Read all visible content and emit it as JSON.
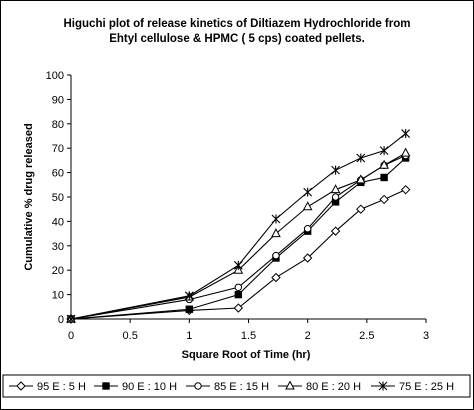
{
  "chart_data": {
    "type": "line",
    "title_lines": [
      "Higuchi plot of release kinetics of Diltiazem Hydrochloride from",
      "Ehtyl cellulose & HPMC ( 5 cps) coated pellets."
    ],
    "xlabel": "Square Root of Time (hr)",
    "ylabel": "Cumulative % drug released",
    "xlim": [
      0,
      3
    ],
    "ylim": [
      0,
      100
    ],
    "x_ticks": [
      "0",
      "0.5",
      "1",
      "1.5",
      "2",
      "2.5",
      "3"
    ],
    "y_ticks": [
      "0",
      "10",
      "20",
      "30",
      "40",
      "50",
      "60",
      "70",
      "80",
      "90",
      "100"
    ],
    "grid": false,
    "legend_position": "bottom",
    "x": [
      0,
      1,
      1.414,
      1.732,
      2,
      2.236,
      2.449,
      2.646,
      2.828
    ],
    "series": [
      {
        "name": "95 E : 5 H",
        "marker": "diamond",
        "values": [
          0,
          3.5,
          4.5,
          17,
          25,
          36,
          45,
          49,
          53
        ]
      },
      {
        "name": "90 E : 10 H",
        "marker": "square",
        "values": [
          0,
          4,
          10,
          25,
          36,
          48,
          56,
          58,
          66
        ]
      },
      {
        "name": "85 E : 15 H",
        "marker": "circle",
        "values": [
          0,
          8,
          13,
          26,
          37,
          50,
          57,
          63,
          67
        ]
      },
      {
        "name": "80 E : 20 H",
        "marker": "triangle",
        "values": [
          0,
          9,
          20,
          35,
          46,
          53,
          57,
          63,
          68
        ]
      },
      {
        "name": "75 E : 25 H",
        "marker": "star",
        "values": [
          0,
          9.5,
          22,
          41,
          52,
          61,
          66,
          69,
          76
        ]
      }
    ]
  }
}
